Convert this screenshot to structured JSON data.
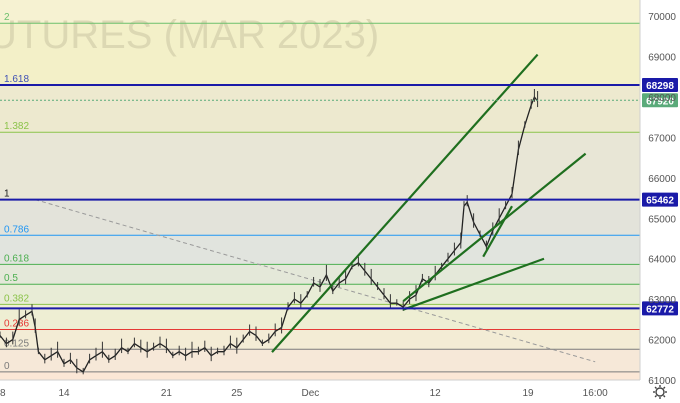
{
  "chart_data": {
    "type": "line",
    "watermark": "UTURES (MAR 2023)",
    "ylim": [
      61000,
      70400
    ],
    "y_ticks": [
      "70000",
      "69000",
      "68000",
      "67000",
      "66000",
      "65000",
      "64000",
      "63000",
      "62000",
      "61000"
    ],
    "x_ticks": [
      "8",
      "14",
      "21",
      "25",
      "Dec",
      "12",
      "19",
      "16:00"
    ],
    "fib_levels": [
      {
        "label": "2",
        "value": 69825,
        "color": "#6cc06c"
      },
      {
        "label": "1.618",
        "value": 68298,
        "color": "#3f51b5"
      },
      {
        "label": "1.382",
        "value": 67130,
        "color": "#8bc34a"
      },
      {
        "label": "1",
        "value": 65462,
        "color": "#1a1a1a"
      },
      {
        "label": "0.786",
        "value": 64580,
        "color": "#2196f3"
      },
      {
        "label": "0.618",
        "value": 63860,
        "color": "#4caf50"
      },
      {
        "label": "0.5",
        "value": 63370,
        "color": "#4caf50"
      },
      {
        "label": "0.382",
        "value": 62870,
        "color": "#8bc34a"
      },
      {
        "label": "0.236",
        "value": 62250,
        "color": "#e53935"
      },
      {
        "label": "0.125",
        "value": 61760,
        "color": "#7b7b7b"
      },
      {
        "label": "0",
        "value": 61200,
        "color": "#7b7b7b"
      }
    ],
    "horizontal_lines": [
      {
        "value": 68298,
        "label": "68298",
        "color": "#1a1aa8"
      },
      {
        "value": 65462,
        "label": "65462",
        "color": "#1a1aa8"
      },
      {
        "value": 62772,
        "label": "62772",
        "color": "#1a1aa8"
      }
    ],
    "last_price": {
      "value": 67920,
      "label": "67920",
      "color": "#5aaa7a"
    },
    "trendlines": [
      {
        "x1": 0.425,
        "y1": 61690,
        "x2": 0.84,
        "y2": 69050
      },
      {
        "x1": 0.63,
        "y1": 62950,
        "x2": 0.915,
        "y2": 66600
      },
      {
        "x1": 0.63,
        "y1": 62740,
        "x2": 0.85,
        "y2": 64000
      },
      {
        "x1": 0.755,
        "y1": 64050,
        "x2": 0.8,
        "y2": 65300
      }
    ],
    "dashed_line": {
      "x1": 0.055,
      "y1": 65462,
      "x2": 0.93,
      "y2": 61450
    },
    "series": [
      {
        "x": [
          0,
          0.01,
          0.02,
          0.03,
          0.04,
          0.05,
          0.055,
          0.06,
          0.07,
          0.08,
          0.09,
          0.1,
          0.11,
          0.12,
          0.13,
          0.14,
          0.15,
          0.16,
          0.17,
          0.18,
          0.19,
          0.2,
          0.21,
          0.22,
          0.23,
          0.24,
          0.25,
          0.26,
          0.27,
          0.28,
          0.29,
          0.3,
          0.31,
          0.32,
          0.33,
          0.34,
          0.35,
          0.36,
          0.37,
          0.38,
          0.39,
          0.4,
          0.41,
          0.42,
          0.43,
          0.44,
          0.45,
          0.46,
          0.47,
          0.48,
          0.49,
          0.5,
          0.51,
          0.52,
          0.53,
          0.54,
          0.55,
          0.56,
          0.57,
          0.58,
          0.59,
          0.6,
          0.61,
          0.62,
          0.63,
          0.64,
          0.65,
          0.66,
          0.67,
          0.68,
          0.69,
          0.7,
          0.71,
          0.72,
          0.725,
          0.73,
          0.74,
          0.75,
          0.76,
          0.77,
          0.78,
          0.79,
          0.8,
          0.81,
          0.82,
          0.83,
          0.835,
          0.84
        ],
        "values": [
          62100,
          61900,
          62000,
          62500,
          62600,
          62700,
          62300,
          61700,
          61500,
          61600,
          61700,
          61400,
          61500,
          61300,
          61200,
          61500,
          61600,
          61700,
          61500,
          61600,
          61800,
          61700,
          61900,
          61800,
          61700,
          61800,
          61900,
          61800,
          61600,
          61700,
          61600,
          61700,
          61700,
          61800,
          61600,
          61700,
          61700,
          61900,
          61800,
          62000,
          62200,
          62100,
          61900,
          62000,
          62200,
          62300,
          62800,
          63000,
          62900,
          63100,
          63400,
          63300,
          63600,
          63200,
          63400,
          63500,
          63800,
          63900,
          63700,
          63500,
          63300,
          63100,
          62900,
          62900,
          62800,
          63000,
          63100,
          63500,
          63400,
          63600,
          63800,
          64000,
          64200,
          64400,
          65300,
          65400,
          64900,
          64600,
          64300,
          64700,
          65000,
          65300,
          65600,
          66700,
          67300,
          67800,
          68000,
          67900
        ]
      }
    ]
  }
}
